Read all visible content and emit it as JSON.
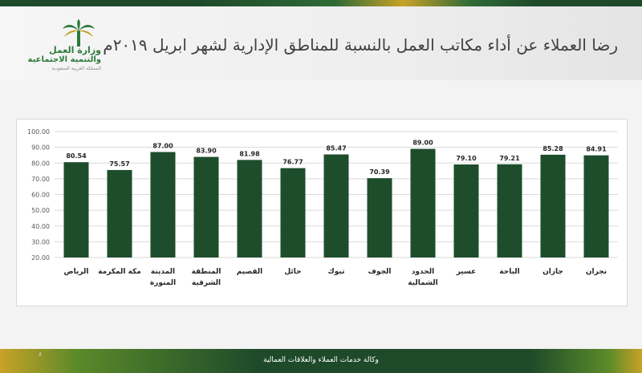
{
  "logo": {
    "name_line1": "وزارة العمل",
    "name_line2": "والتنمية الاجتماعية",
    "subtitle": "المملكة العربية السعودية",
    "icon": "palm-icon"
  },
  "title": "رضا العملاء عن أداء مكاتب العمل بالنسبة للمناطق الإدارية لشهر ابريل ٢٠١٩م",
  "footer": {
    "text": "وكالة خدمات العملاء والعلاقات العمالية",
    "page_number": "٨"
  },
  "colors": {
    "bar": "#1e4d2b",
    "brand_green": "#1e4a2a",
    "accent_gold": "#c9a227"
  },
  "chart_data": {
    "type": "bar",
    "categories": [
      [
        "الرياض"
      ],
      [
        "مكة المكرمة"
      ],
      [
        "المدينة",
        "المنورة"
      ],
      [
        "المنطقة",
        "الشرقية"
      ],
      [
        "القصيم"
      ],
      [
        "حائل"
      ],
      [
        "تبوك"
      ],
      [
        "الجوف"
      ],
      [
        "الحدود",
        "الشمالية"
      ],
      [
        "عسير"
      ],
      [
        "الباحة"
      ],
      [
        "جازان"
      ],
      [
        "نجران"
      ]
    ],
    "values": [
      80.54,
      75.57,
      87.0,
      83.9,
      81.98,
      76.77,
      85.47,
      70.39,
      89.0,
      79.1,
      79.21,
      85.28,
      84.91
    ],
    "value_labels": [
      "80.54",
      "75.57",
      "87.00",
      "83.90",
      "81.98",
      "76.77",
      "85.47",
      "70.39",
      "89.00",
      "79.10",
      "79.21",
      "85.28",
      "84.91"
    ],
    "y_ticks": [
      "100.00",
      "90.00",
      "80.00",
      "70.00",
      "60.00",
      "50.00",
      "40.00",
      "30.00",
      "20.00"
    ],
    "ylim": [
      20,
      100
    ],
    "grid": true,
    "legend": "none",
    "xlabel": "",
    "ylabel": ""
  }
}
